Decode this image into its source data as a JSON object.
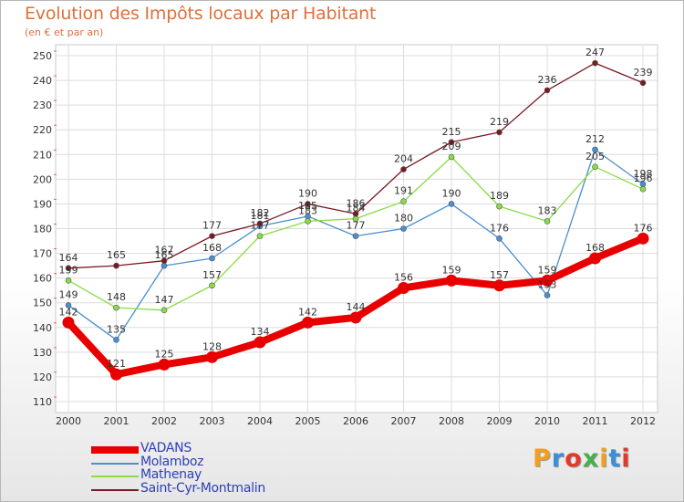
{
  "title": "Evolution des Impôts locaux par Habitant",
  "subtitle": "(en € et par an)",
  "logo": "Proxiti",
  "logo_colors": [
    "#f0a020",
    "#3a8fd8",
    "#e23a2a",
    "#46b04a",
    "#f0a020",
    "#3a8fd8",
    "#e23a2a"
  ],
  "chart_data": {
    "type": "line",
    "x": [
      "2000",
      "2001",
      "2002",
      "2003",
      "2004",
      "2005",
      "2006",
      "2007",
      "2008",
      "2009",
      "2010",
      "2011",
      "2012"
    ],
    "ylim": [
      110,
      250
    ],
    "yticks": [
      110,
      120,
      130,
      140,
      150,
      160,
      170,
      180,
      190,
      200,
      210,
      220,
      230,
      240,
      250
    ],
    "grid": true,
    "legend_position": "bottom-left",
    "series": [
      {
        "name": "VADANS",
        "color": "#e80000",
        "emphasis": true,
        "values": [
          142,
          121,
          125,
          128,
          134,
          142,
          144,
          156,
          159,
          157,
          159,
          168,
          176
        ]
      },
      {
        "name": "Molamboz",
        "color": "#4a8fd0",
        "values": [
          149,
          135,
          165,
          168,
          181,
          185,
          177,
          180,
          190,
          176,
          153,
          212,
          198
        ]
      },
      {
        "name": "Mathenay",
        "color": "#88dd44",
        "values": [
          159,
          148,
          147,
          157,
          177,
          183,
          184,
          191,
          209,
          189,
          183,
          205,
          196
        ]
      },
      {
        "name": "Saint-Cyr-Montmalin",
        "color": "#7a1a22",
        "values": [
          164,
          165,
          167,
          177,
          182,
          190,
          186,
          204,
          215,
          219,
          236,
          247,
          239
        ]
      }
    ]
  }
}
